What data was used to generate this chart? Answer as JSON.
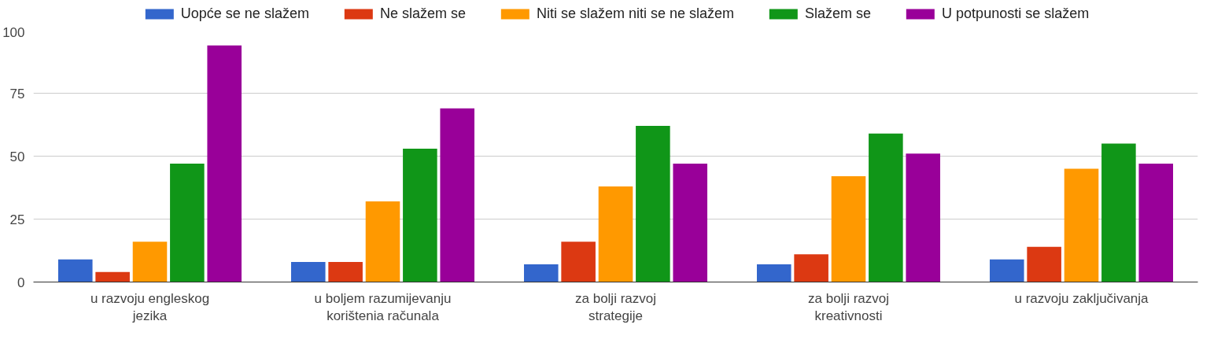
{
  "chart_data": {
    "type": "bar",
    "categories": [
      "u razvoju engleskog jezika",
      "u boljem razumijevanju korištenia računala",
      "za bolji razvoj strategije",
      "za bolji razvoj kreativnosti",
      "u razvoju zaključivanja"
    ],
    "series": [
      {
        "name": "Uopće se ne slažem",
        "color": "#3366cc",
        "values": [
          9,
          8,
          7,
          7,
          9
        ]
      },
      {
        "name": "Ne slažem se",
        "color": "#dc3912",
        "values": [
          4,
          8,
          16,
          11,
          14
        ]
      },
      {
        "name": "Niti se slažem niti se ne slažem",
        "color": "#ff9900",
        "values": [
          16,
          32,
          38,
          42,
          45
        ]
      },
      {
        "name": "Slažem se",
        "color": "#109618",
        "values": [
          47,
          53,
          62,
          59,
          55
        ]
      },
      {
        "name": "U potpunosti se slažem",
        "color": "#990099",
        "values": [
          94,
          69,
          47,
          51,
          47
        ]
      }
    ],
    "ylim": [
      0,
      100
    ],
    "yticks": [
      0,
      25,
      50,
      75,
      100
    ],
    "grid": "y",
    "legend": "top"
  }
}
